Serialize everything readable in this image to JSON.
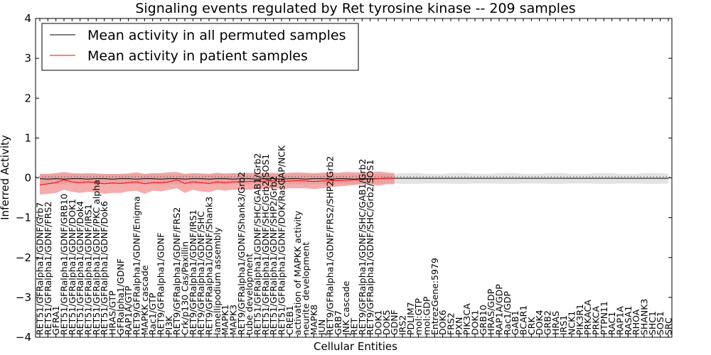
{
  "chart_data": {
    "type": "line",
    "title": "Signaling events regulated by Ret tyrosine kinase -- 209 samples",
    "xlabel": "Cellular Entities",
    "ylabel": "Inferred Activity",
    "ylim": [
      -4,
      4
    ],
    "yticks": [
      -4,
      -3,
      -2,
      -1,
      0,
      1,
      2,
      3,
      4
    ],
    "grid": false,
    "legend_position": "top-left",
    "categories": [
      "RET51/GFRalpha1/GDNF/Grb7",
      "RET51/GFRalpha1/GDNF/FRS2",
      "GFRA1",
      "RET51/GFRalpha1/GDNF/GRB10",
      "RET51/GFRalpha1/GDNF/DOK1",
      "RET51/GFRalpha1/GDNF/Dok4",
      "RET51/GFRalpha1/GDNF/IRS1",
      "RET51/GFRalpha1/GDNF/PKC alpha",
      "RET51/GFRalpha1/GDNF/Dok6",
      "HRAS/GTP",
      "GFRalpha1/GDNF",
      "RAP1A/GTP",
      "RET9/GFRalpha1/GDNF/Enigma",
      "MAPKK cascade",
      "Rac1/GTP",
      "RET9/GFRalpha1/GDNF",
      "PI3K",
      "RET9/GFRalpha1/GDNF/FRS2",
      "Crk/p130 Cas/Paxillin",
      "RET9/GFRalpha1/GDNF/IRS1",
      "RET9/GFRalpha1/GDNF/SHC",
      "RET9/GFRalpha1/GDNF/Shank3",
      "lamellipodium assembly",
      "MAPK1",
      "MAPK3",
      "RET9/GFRalpha1/GDNF/Shank3/Grb2",
      "tube development",
      "RET51/GFRalpha1/GDNF/SHC/GAB1/Grb2",
      "RET51/GFRalpha1/GDNF/SHC/Grb2/SOS1",
      "RET51/GFRalpha1/GDNF/SHP2/Grb2",
      "RET51/GFRalpha1/GDNF/DOK/RasGAP/NCK",
      "CREB1",
      "activation of MAPKK activity",
      "neurite development",
      "MAPK8",
      "JUN",
      "RET9/GFRalpha1/GDNF/FRS2/SHP2/Grb2",
      "GRB7",
      "JNK cascade",
      "RET",
      "RET9/GFRalpha1/GDNF/SHC/GAB1/Grb2",
      "RET9/GFRalpha1/GDNF/SHC/Grb2/SOS1",
      "DOK1",
      "DOK5",
      "GDNF",
      "IRS2",
      "PDLIM7",
      "mol:GTP",
      "mol:GDP",
      "EntrezGene:5979",
      "DOK6",
      "FRS2",
      "PXN",
      "PIK3CA",
      "DOK1",
      "GRB10",
      "HRAS/GDP",
      "RAP1A/GDP",
      "Rac1/GDP",
      "GAB1",
      "BCAR1",
      "CRK",
      "DOK4",
      "GRB2",
      "HRAS",
      "IRS1",
      "NCK1",
      "PIK3R1",
      "PRKACA",
      "PRKCA",
      "PTPN11",
      "RAC1",
      "RAP1A",
      "RASA1",
      "RHOA",
      "SHANK3",
      "SHC1",
      "SOS1",
      "SRC"
    ],
    "series": [
      {
        "name": "Mean activity in all permuted samples",
        "color": "#000000",
        "values": [
          -0.02,
          -0.03,
          -0.02,
          -0.03,
          -0.02,
          -0.02,
          -0.03,
          -0.02,
          -0.02,
          -0.03,
          -0.02,
          -0.02,
          -0.03,
          -0.02,
          -0.02,
          -0.03,
          -0.02,
          -0.02,
          -0.03,
          -0.02,
          -0.02,
          -0.03,
          -0.02,
          -0.02,
          -0.03,
          -0.02,
          -0.02,
          -0.03,
          -0.02,
          -0.02,
          -0.03,
          -0.02,
          -0.02,
          -0.03,
          -0.02,
          -0.02,
          -0.03,
          -0.02,
          -0.02,
          -0.03,
          -0.02,
          -0.02,
          -0.02,
          -0.01,
          -0.01,
          -0.01,
          -0.01,
          -0.01,
          -0.01,
          -0.01,
          -0.01,
          -0.01,
          -0.01,
          -0.01,
          -0.01,
          -0.01,
          -0.01,
          -0.01,
          -0.01,
          -0.01,
          -0.01,
          -0.01,
          -0.01,
          -0.01,
          -0.01,
          -0.01,
          -0.01,
          -0.01,
          -0.01,
          -0.01,
          -0.01,
          -0.01,
          -0.01,
          -0.01,
          -0.01,
          -0.01,
          -0.01,
          -0.01,
          -0.01
        ],
        "lower": [
          -0.16,
          -0.16,
          -0.16,
          -0.16,
          -0.16,
          -0.16,
          -0.16,
          -0.16,
          -0.16,
          -0.16,
          -0.16,
          -0.16,
          -0.16,
          -0.16,
          -0.16,
          -0.16,
          -0.16,
          -0.16,
          -0.16,
          -0.16,
          -0.16,
          -0.16,
          -0.16,
          -0.16,
          -0.16,
          -0.16,
          -0.16,
          -0.16,
          -0.16,
          -0.16,
          -0.16,
          -0.16,
          -0.16,
          -0.16,
          -0.16,
          -0.16,
          -0.16,
          -0.16,
          -0.16,
          -0.16,
          -0.16,
          -0.16,
          -0.14,
          -0.14,
          -0.14,
          -0.15,
          -0.15,
          -0.15,
          -0.14,
          -0.14,
          -0.14,
          -0.15,
          -0.15,
          -0.15,
          -0.14,
          -0.14,
          -0.14,
          -0.15,
          -0.15,
          -0.15,
          -0.14,
          -0.14,
          -0.14,
          -0.15,
          -0.15,
          -0.15,
          -0.14,
          -0.14,
          -0.14,
          -0.15,
          -0.15,
          -0.15,
          -0.14,
          -0.14,
          -0.14,
          -0.15,
          -0.15,
          -0.15,
          -0.14
        ],
        "upper": [
          0.1,
          0.1,
          0.1,
          0.1,
          0.1,
          0.1,
          0.1,
          0.1,
          0.1,
          0.1,
          0.1,
          0.1,
          0.1,
          0.1,
          0.1,
          0.1,
          0.1,
          0.1,
          0.1,
          0.1,
          0.1,
          0.1,
          0.1,
          0.1,
          0.1,
          0.1,
          0.1,
          0.1,
          0.1,
          0.1,
          0.1,
          0.1,
          0.1,
          0.1,
          0.1,
          0.1,
          0.1,
          0.1,
          0.1,
          0.1,
          0.1,
          0.1,
          0.1,
          0.1,
          0.1,
          0.12,
          0.12,
          0.12,
          0.1,
          0.1,
          0.1,
          0.12,
          0.12,
          0.12,
          0.1,
          0.1,
          0.1,
          0.12,
          0.12,
          0.12,
          0.1,
          0.1,
          0.1,
          0.12,
          0.12,
          0.12,
          0.1,
          0.1,
          0.1,
          0.12,
          0.12,
          0.12,
          0.1,
          0.1,
          0.1,
          0.12,
          0.12,
          0.12,
          0.1
        ]
      },
      {
        "name": "Mean activity in patient samples",
        "color": "#ff0000",
        "band_color": "#f08080",
        "values": [
          -0.18,
          -0.15,
          -0.12,
          -0.05,
          -0.1,
          -0.12,
          -0.1,
          -0.12,
          -0.15,
          -0.13,
          -0.14,
          -0.12,
          -0.1,
          -0.15,
          -0.12,
          -0.12,
          -0.1,
          -0.05,
          -0.14,
          -0.1,
          -0.12,
          -0.14,
          -0.1,
          -0.12,
          -0.1,
          -0.1,
          -0.09,
          -0.09,
          -0.08,
          -0.08,
          -0.09,
          -0.08,
          -0.07,
          -0.08,
          -0.09,
          -0.08,
          -0.07,
          -0.07,
          -0.06,
          -0.05,
          -0.04,
          -0.03,
          -0.02,
          -0.01,
          -0.01,
          null,
          null,
          null,
          null,
          null,
          null,
          null,
          null,
          null,
          null,
          null,
          null,
          null,
          null,
          null,
          null,
          null,
          null,
          null,
          null,
          null,
          null,
          null,
          null,
          null,
          null,
          null,
          null,
          null,
          null,
          null,
          null,
          null,
          null
        ],
        "lower": [
          -0.42,
          -0.4,
          -0.38,
          -0.3,
          -0.35,
          -0.38,
          -0.35,
          -0.36,
          -0.4,
          -0.38,
          -0.38,
          -0.34,
          -0.32,
          -0.4,
          -0.32,
          -0.34,
          -0.3,
          -0.26,
          -0.38,
          -0.3,
          -0.34,
          -0.36,
          -0.3,
          -0.32,
          -0.3,
          -0.3,
          -0.3,
          -0.28,
          -0.28,
          -0.26,
          -0.28,
          -0.26,
          -0.26,
          -0.26,
          -0.28,
          -0.26,
          -0.24,
          -0.22,
          -0.2,
          -0.18,
          -0.16,
          -0.16,
          -0.2,
          -0.16,
          -0.16,
          null,
          null,
          null,
          null,
          null,
          null,
          null,
          null,
          null,
          null,
          null,
          null,
          null,
          null,
          null,
          null,
          null,
          null,
          null,
          null,
          null,
          null,
          null,
          null,
          null,
          null,
          null,
          null,
          null,
          null,
          null,
          null,
          null,
          null
        ],
        "upper": [
          0.1,
          0.1,
          0.12,
          0.15,
          0.12,
          0.11,
          0.12,
          0.11,
          0.1,
          0.1,
          0.1,
          0.11,
          0.14,
          0.1,
          0.12,
          0.12,
          0.14,
          0.15,
          0.1,
          0.12,
          0.11,
          0.1,
          0.13,
          0.11,
          0.12,
          0.12,
          0.13,
          0.13,
          0.13,
          0.13,
          0.12,
          0.13,
          0.14,
          0.13,
          0.12,
          0.13,
          0.14,
          0.13,
          0.15,
          0.14,
          0.14,
          0.14,
          0.16,
          0.14,
          0.12,
          null,
          null,
          null,
          null,
          null,
          null,
          null,
          null,
          null,
          null,
          null,
          null,
          null,
          null,
          null,
          null,
          null,
          null,
          null,
          null,
          null,
          null,
          null,
          null,
          null,
          null,
          null,
          null,
          null,
          null,
          null,
          null,
          null,
          null
        ]
      }
    ]
  }
}
